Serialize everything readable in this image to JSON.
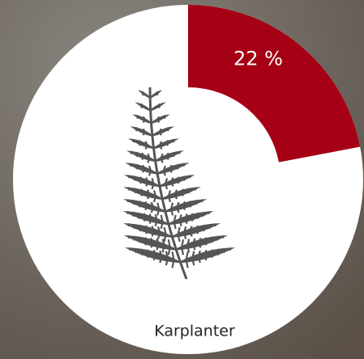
{
  "chart_data": {
    "type": "pie",
    "title": "Karplanter",
    "values": [
      22
    ],
    "value_labels": [
      "22 %"
    ],
    "color": "#a50016",
    "background_color": "#ffffff"
  }
}
